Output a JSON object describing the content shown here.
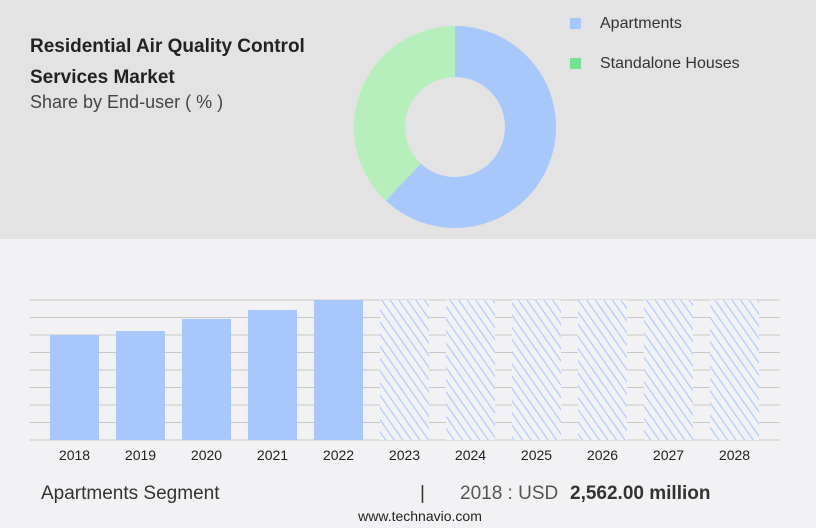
{
  "header": {
    "title": "Residential Air Quality Control Services Market",
    "subtitle": "Share by End-user ( % )"
  },
  "colors": {
    "apartments": "#a8c8fc",
    "standalone_houses": "#b6efbb",
    "standalone_legend": "#77e296",
    "grid": "#c8c8c8"
  },
  "chart_data": [
    {
      "type": "pie",
      "donut": true,
      "slices": [
        {
          "name": "Apartments",
          "value": 62
        },
        {
          "name": "Standalone Houses",
          "value": 38
        }
      ],
      "legend_placement": "right"
    },
    {
      "type": "bar",
      "categories": [
        "2018",
        "2019",
        "2020",
        "2021",
        "2022",
        "2023",
        "2024",
        "2025",
        "2026",
        "2027",
        "2028"
      ],
      "values": [
        2562,
        2660,
        2953,
        3172,
        3416,
        null,
        null,
        null,
        null,
        null,
        null
      ],
      "forecast_from": "2023",
      "grid": true,
      "ylim": [
        0,
        3416
      ]
    }
  ],
  "footer": {
    "segment": "Apartments Segment",
    "divider": "|",
    "year_label": "2018 : USD",
    "value": "2,562.00 million",
    "url": "www.technavio.com"
  }
}
